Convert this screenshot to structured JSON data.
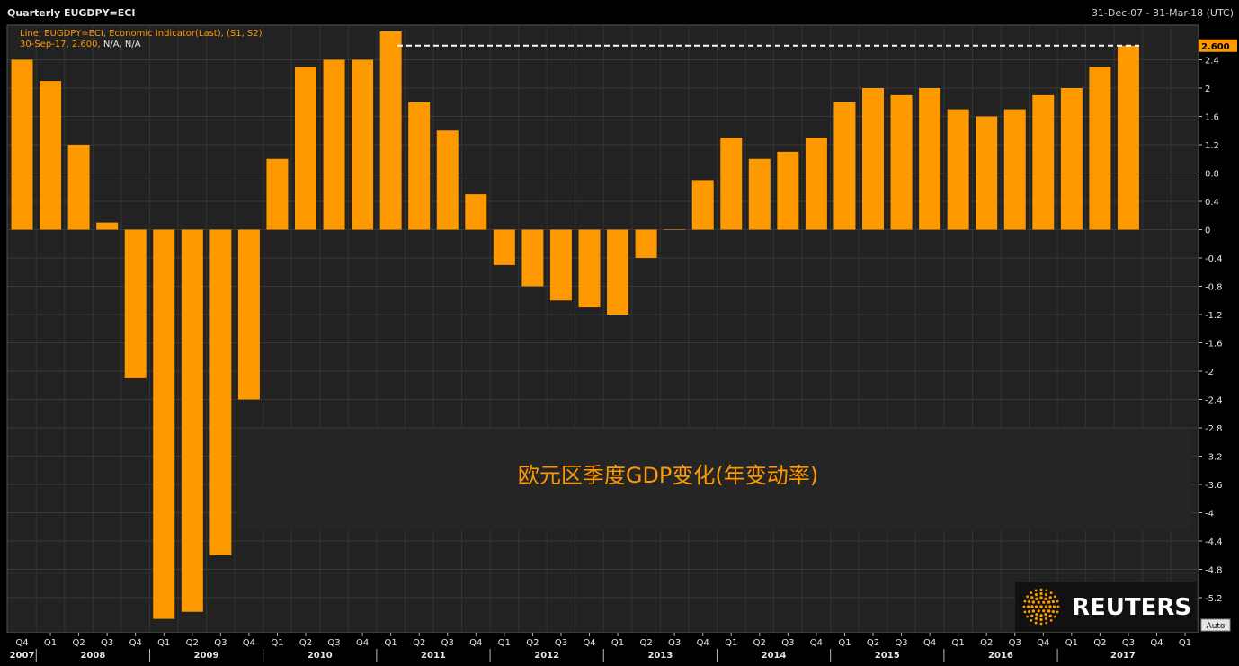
{
  "header": {
    "title": "Quarterly EUGDPY=ECI",
    "date_range": "31-Dec-07 - 31-Mar-18 (UTC)"
  },
  "legend": {
    "line1": "Line, EUGDPY=ECI, Economic Indicator(Last), (S1, S2)",
    "line2_prefix": "30-Sep-17, 2.600, ",
    "line2_suffix": "N/A, N/A"
  },
  "overlay_title": "欧元区季度GDP变化(年变动率)",
  "last_value_label": "2.600",
  "auto_button": "Auto",
  "logo": {
    "text": "REUTERS"
  },
  "colors": {
    "bar": "#ff9900",
    "background": "#000000",
    "plot_background": "#222222",
    "text": "#e6e6e6",
    "accent": "#ff9900"
  },
  "chart_data": {
    "type": "bar",
    "title": "欧元区季度GDP变化(年变动率)",
    "categories": [
      "Q4",
      "Q1",
      "Q2",
      "Q3",
      "Q4",
      "Q1",
      "Q2",
      "Q3",
      "Q4",
      "Q1",
      "Q2",
      "Q3",
      "Q4",
      "Q1",
      "Q2",
      "Q3",
      "Q4",
      "Q1",
      "Q2",
      "Q3",
      "Q4",
      "Q1",
      "Q2",
      "Q3",
      "Q4",
      "Q1",
      "Q2",
      "Q3",
      "Q4",
      "Q1",
      "Q2",
      "Q3",
      "Q4",
      "Q1",
      "Q2",
      "Q3",
      "Q4",
      "Q1",
      "Q2",
      "Q3",
      "Q4",
      "Q1"
    ],
    "year_labels": [
      "2007",
      "2008",
      "2009",
      "2010",
      "2011",
      "2012",
      "2013",
      "2014",
      "2015",
      "2016",
      "2017"
    ],
    "values": [
      2.4,
      2.1,
      1.2,
      0.1,
      -2.1,
      -5.5,
      -5.4,
      -4.6,
      -2.4,
      1.0,
      2.3,
      2.4,
      2.4,
      2.8,
      1.8,
      1.4,
      0.5,
      -0.5,
      -0.8,
      -1.0,
      -1.1,
      -1.2,
      -0.4,
      0.0,
      0.7,
      1.3,
      1.0,
      1.1,
      1.3,
      1.8,
      2.0,
      1.9,
      2.0,
      1.7,
      1.6,
      1.7,
      1.9,
      2.0,
      2.3,
      2.6,
      null,
      null
    ],
    "yticks": [
      2.4,
      2,
      1.6,
      1.2,
      0.8,
      0.4,
      0,
      -0.4,
      -0.8,
      -1.2,
      -1.6,
      -2,
      -2.4,
      -2.8,
      -3.2,
      -3.6,
      -4,
      -4.4,
      -4.8,
      -5.2
    ],
    "ylim": [
      -5.5,
      2.8
    ],
    "last_value": 2.6,
    "xlabel": "",
    "ylabel": ""
  }
}
